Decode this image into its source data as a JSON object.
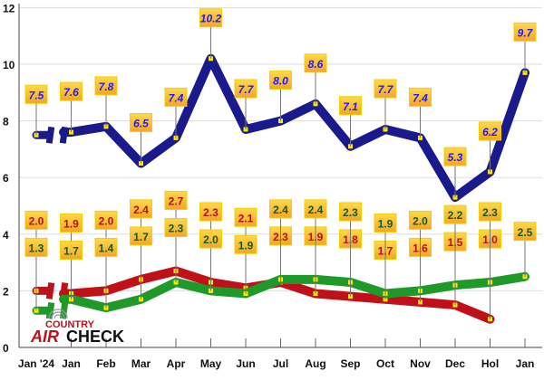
{
  "chart_data": {
    "type": "line",
    "title": "",
    "xlabel": "",
    "ylabel": "",
    "categories": [
      "Jan '24",
      "Jan",
      "Feb",
      "Mar",
      "Apr",
      "May",
      "Jun",
      "Jul",
      "Aug",
      "Sep",
      "Oct",
      "Nov",
      "Dec",
      "Hol",
      "Jan"
    ],
    "ylim": [
      0,
      12
    ],
    "yticks": [
      0,
      2,
      4,
      6,
      8,
      10,
      12
    ],
    "grid": true,
    "axis_break_after": "Jan '24",
    "series": [
      {
        "color": "#1a1a8c",
        "label_color": "#1a1aff",
        "values": [
          7.5,
          7.6,
          7.8,
          6.5,
          7.4,
          10.2,
          7.7,
          8.0,
          8.6,
          7.1,
          7.7,
          7.4,
          5.3,
          6.2,
          9.7
        ]
      },
      {
        "color": "#c0101a",
        "label_color": "#b0102a",
        "values": [
          2.0,
          1.9,
          2.0,
          2.4,
          2.7,
          2.3,
          2.1,
          2.3,
          1.9,
          1.8,
          1.7,
          1.6,
          1.5,
          1.0,
          null
        ]
      },
      {
        "color": "#1f9a2a",
        "label_color": "#0f5a2a",
        "values": [
          1.3,
          1.7,
          1.4,
          1.7,
          2.3,
          2.0,
          1.9,
          2.4,
          2.4,
          2.3,
          1.9,
          2.0,
          2.2,
          2.3,
          2.5
        ]
      }
    ]
  },
  "logo": {
    "top": "COUNTRY",
    "air": "AIR",
    "check": "CHECK"
  }
}
